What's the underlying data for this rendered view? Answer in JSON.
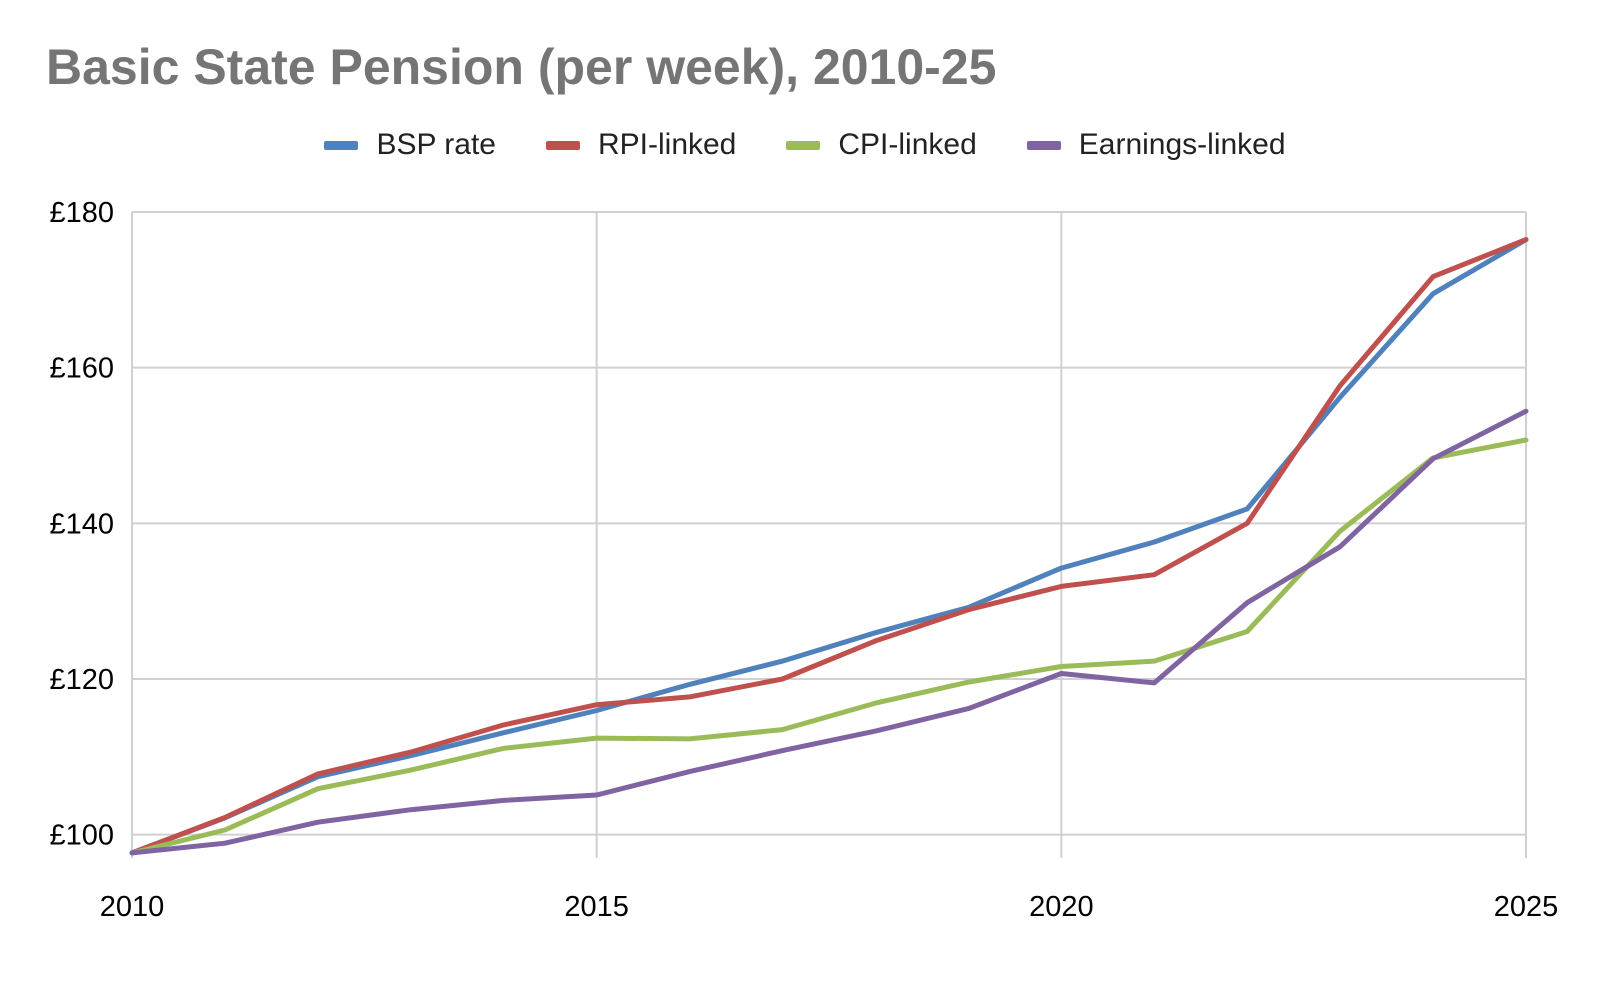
{
  "colors": {
    "bsp": "#4f81bd",
    "rpi": "#c0504d",
    "cpi": "#9bbb59",
    "earnings": "#8064a2",
    "grid": "#d0d0d0",
    "title": "#757575"
  },
  "chart_data": {
    "type": "line",
    "title": "Basic State Pension (per week), 2010-25",
    "xlabel": "",
    "ylabel": "",
    "xlim": [
      2010,
      2025
    ],
    "ylim": [
      97,
      180
    ],
    "x_ticks": [
      2010,
      2015,
      2020,
      2025
    ],
    "x_tick_labels": [
      "2010",
      "2015",
      "2020",
      "2025"
    ],
    "y_ticks": [
      100,
      120,
      140,
      160,
      180
    ],
    "y_tick_labels": [
      "£100",
      "£120",
      "£140",
      "£160",
      "£180"
    ],
    "grid": true,
    "legend_position": "top-center",
    "x": [
      2010,
      2011,
      2012,
      2013,
      2014,
      2015,
      2016,
      2017,
      2018,
      2019,
      2020,
      2021,
      2022,
      2023,
      2024,
      2025
    ],
    "series": [
      {
        "key": "bsp",
        "name": "BSP rate",
        "values": [
          97.65,
          102.15,
          107.45,
          110.15,
          113.1,
          115.95,
          119.3,
          122.3,
          125.95,
          129.2,
          134.25,
          137.6,
          141.85,
          156.2,
          169.5,
          176.45
        ]
      },
      {
        "key": "rpi",
        "name": "RPI-linked",
        "values": [
          97.65,
          102.2,
          107.8,
          110.6,
          114.1,
          116.7,
          117.7,
          120.0,
          124.9,
          128.9,
          131.9,
          133.4,
          140.0,
          157.7,
          171.7,
          176.45
        ]
      },
      {
        "key": "cpi",
        "name": "CPI-linked",
        "values": [
          97.65,
          100.6,
          105.9,
          108.3,
          111.1,
          112.4,
          112.3,
          113.5,
          116.9,
          119.6,
          121.6,
          122.3,
          126.1,
          139.0,
          148.4,
          150.7
        ]
      },
      {
        "key": "earnings",
        "name": "Earnings-linked",
        "values": [
          97.65,
          98.9,
          101.6,
          103.2,
          104.4,
          105.1,
          108.1,
          110.8,
          113.3,
          116.2,
          120.7,
          119.5,
          129.8,
          137.0,
          148.3,
          154.4
        ]
      }
    ]
  }
}
